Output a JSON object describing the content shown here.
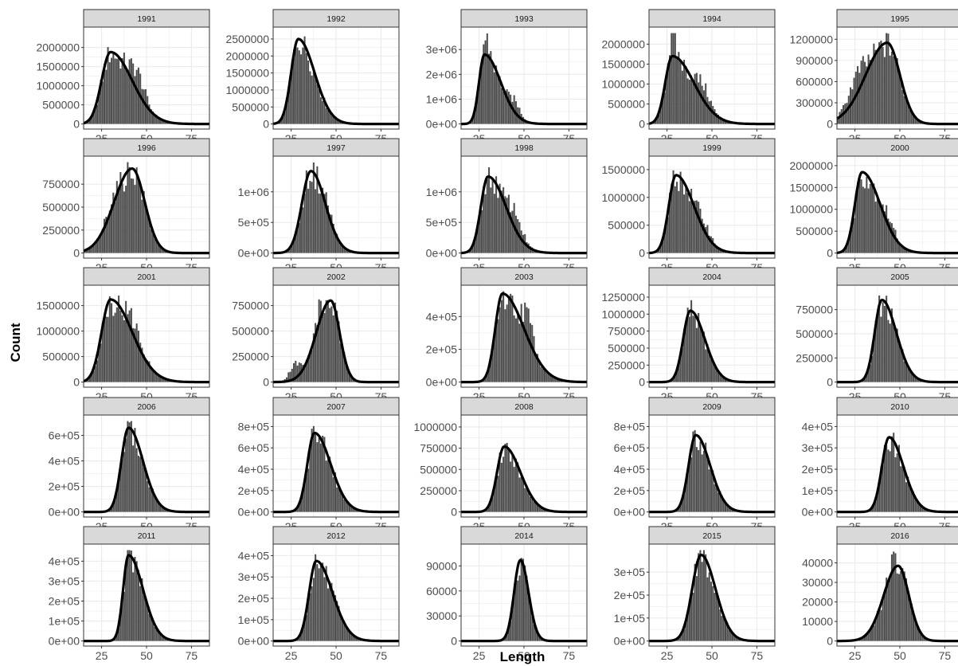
{
  "figure": {
    "xlabel": "Length",
    "ylabel": "Count"
  },
  "colors": {
    "bar": "#4d4d4d",
    "curve": "#000000",
    "strip": "#d9d9d9",
    "strip_border": "#333333",
    "grid": "#ebebeb",
    "panel_border": "#333333"
  },
  "chart_data": {
    "type": "faceted-histogram",
    "xlim": [
      15,
      85
    ],
    "x_ticks": [
      25,
      50,
      75
    ],
    "panels": [
      {
        "year": "1991",
        "ymax": 2400000,
        "yticks": [
          0,
          500000,
          1000000,
          1500000,
          2000000
        ],
        "ytick_labels": [
          "0",
          "500000",
          "1000000",
          "1500000",
          "2000000"
        ],
        "fit": {
          "mu": 30,
          "sl": 5,
          "sr": 12,
          "peak": 1880000
        },
        "bumps": [
          {
            "x": 45,
            "s": 4,
            "h": 550000
          }
        ]
      },
      {
        "year": "1992",
        "ymax": 2700000,
        "yticks": [
          0,
          500000,
          1000000,
          1500000,
          2000000,
          2500000
        ],
        "ytick_labels": [
          "0",
          "500000",
          "1000000",
          "1500000",
          "2000000",
          "2500000"
        ],
        "fit": {
          "mu": 29,
          "sl": 4,
          "sr": 9,
          "peak": 2500000
        },
        "bumps": []
      },
      {
        "year": "1993",
        "ymax": 3700000,
        "yticks": [
          0,
          1000000,
          2000000,
          3000000
        ],
        "ytick_labels": [
          "0e+00",
          "1e+06",
          "2e+06",
          "3e+06"
        ],
        "fit": {
          "mu": 28,
          "sl": 3,
          "sr": 9,
          "peak": 2800000
        },
        "bumps": [
          {
            "x": 29,
            "s": 2,
            "h": 700000
          },
          {
            "x": 45,
            "s": 3,
            "h": 500000
          }
        ]
      },
      {
        "year": "1994",
        "ymax": 2300000,
        "yticks": [
          0,
          500000,
          1000000,
          1500000,
          2000000
        ],
        "ytick_labels": [
          "0",
          "500000",
          "1000000",
          "1500000",
          "2000000"
        ],
        "fit": {
          "mu": 28,
          "sl": 4,
          "sr": 12,
          "peak": 1700000
        },
        "bumps": [
          {
            "x": 28,
            "s": 2,
            "h": 500000
          },
          {
            "x": 45,
            "s": 4,
            "h": 400000
          }
        ]
      },
      {
        "year": "1995",
        "ymax": 1300000,
        "yticks": [
          0,
          300000,
          600000,
          900000,
          1200000
        ],
        "ytick_labels": [
          "0",
          "300000",
          "600000",
          "900000",
          "1200000"
        ],
        "fit": {
          "mu": 43,
          "sl": 12,
          "sr": 7,
          "peak": 1150000
        },
        "bumps": [
          {
            "x": 26,
            "s": 5,
            "h": 300000
          }
        ]
      },
      {
        "year": "1996",
        "ymax": 1000000,
        "yticks": [
          0,
          250000,
          500000,
          750000
        ],
        "ytick_labels": [
          "0",
          "250000",
          "500000",
          "750000"
        ],
        "fit": {
          "mu": 42,
          "sl": 10,
          "sr": 7,
          "peak": 920000
        },
        "bumps": [
          {
            "x": 30,
            "s": 3,
            "h": 120000
          }
        ]
      },
      {
        "year": "1997",
        "ymax": 1500000,
        "yticks": [
          0,
          500000,
          1000000
        ],
        "ytick_labels": [
          "0e+00",
          "5e+05",
          "1e+06"
        ],
        "fit": {
          "mu": 36,
          "sl": 5,
          "sr": 8,
          "peak": 1340000
        },
        "bumps": [
          {
            "x": 45,
            "s": 3,
            "h": 150000
          }
        ]
      },
      {
        "year": "1998",
        "ymax": 1500000,
        "yticks": [
          0,
          500000,
          1000000
        ],
        "ytick_labels": [
          "0e+00",
          "5e+05",
          "1e+06"
        ],
        "fit": {
          "mu": 30,
          "sl": 4,
          "sr": 10,
          "peak": 1250000
        },
        "bumps": [
          {
            "x": 45,
            "s": 4,
            "h": 300000
          }
        ]
      },
      {
        "year": "1999",
        "ymax": 1650000,
        "yticks": [
          0,
          500000,
          1000000,
          1500000
        ],
        "ytick_labels": [
          "0",
          "500000",
          "1000000",
          "1500000"
        ],
        "fit": {
          "mu": 30,
          "sl": 4,
          "sr": 10,
          "peak": 1400000
        },
        "bumps": [
          {
            "x": 45,
            "s": 4,
            "h": 200000
          }
        ]
      },
      {
        "year": "2000",
        "ymax": 2100000,
        "yticks": [
          0,
          500000,
          1000000,
          1500000,
          2000000
        ],
        "ytick_labels": [
          "0",
          "500000",
          "1000000",
          "1500000",
          "2000000"
        ],
        "fit": {
          "mu": 29,
          "sl": 4,
          "sr": 10,
          "peak": 1850000
        },
        "bumps": [
          {
            "x": 43,
            "s": 4,
            "h": 250000
          }
        ]
      },
      {
        "year": "2001",
        "ymax": 1800000,
        "yticks": [
          0,
          500000,
          1000000,
          1500000
        ],
        "ytick_labels": [
          "0",
          "500000",
          "1000000",
          "1500000"
        ],
        "fit": {
          "mu": 30,
          "sl": 5,
          "sr": 12,
          "peak": 1620000
        },
        "bumps": [
          {
            "x": 43,
            "s": 4,
            "h": 300000
          }
        ]
      },
      {
        "year": "2002",
        "ymax": 900000,
        "yticks": [
          0,
          250000,
          500000,
          750000
        ],
        "ytick_labels": [
          "0",
          "250000",
          "500000",
          "750000"
        ],
        "fit": {
          "mu": 47,
          "sl": 8,
          "sr": 5,
          "peak": 800000
        },
        "bumps": [
          {
            "x": 27,
            "s": 3,
            "h": 150000
          },
          {
            "x": 40,
            "s": 2,
            "h": 150000
          }
        ]
      },
      {
        "year": "2003",
        "ymax": 560000,
        "yticks": [
          0,
          200000,
          400000
        ],
        "ytick_labels": [
          "0e+00",
          "2e+05",
          "4e+05"
        ],
        "fit": {
          "mu": 38,
          "sl": 4,
          "sr": 12,
          "peak": 540000
        },
        "bumps": [
          {
            "x": 52,
            "s": 3,
            "h": 150000
          }
        ]
      },
      {
        "year": "2004",
        "ymax": 1350000,
        "yticks": [
          0,
          250000,
          500000,
          750000,
          1000000,
          1250000
        ],
        "ytick_labels": [
          "0",
          "250000",
          "500000",
          "750000",
          "1000000",
          "1250000"
        ],
        "fit": {
          "mu": 38,
          "sl": 4,
          "sr": 8,
          "peak": 1050000
        },
        "bumps": []
      },
      {
        "year": "2005",
        "ymax": 950000,
        "yticks": [
          0,
          250000,
          500000,
          750000
        ],
        "ytick_labels": [
          "0",
          "250000",
          "500000",
          "750000"
        ],
        "fit": {
          "mu": 40,
          "sl": 4,
          "sr": 8,
          "peak": 850000
        },
        "bumps": []
      },
      {
        "year": "2006",
        "ymax": 720000,
        "yticks": [
          0,
          200000,
          400000,
          600000
        ],
        "ytick_labels": [
          "0e+00",
          "2e+05",
          "4e+05",
          "6e+05"
        ],
        "fit": {
          "mu": 40,
          "sl": 4,
          "sr": 8,
          "peak": 660000
        },
        "bumps": []
      },
      {
        "year": "2007",
        "ymax": 860000,
        "yticks": [
          0,
          200000,
          400000,
          600000,
          800000
        ],
        "ytick_labels": [
          "0e+00",
          "2e+05",
          "4e+05",
          "6e+05",
          "8e+05"
        ],
        "fit": {
          "mu": 38,
          "sl": 4,
          "sr": 9,
          "peak": 740000
        },
        "bumps": []
      },
      {
        "year": "2008",
        "ymax": 1080000,
        "yticks": [
          0,
          250000,
          500000,
          750000,
          1000000
        ],
        "ytick_labels": [
          "0",
          "250000",
          "500000",
          "750000",
          "1000000"
        ],
        "fit": {
          "mu": 39,
          "sl": 4,
          "sr": 9,
          "peak": 770000
        },
        "bumps": []
      },
      {
        "year": "2009",
        "ymax": 860000,
        "yticks": [
          0,
          200000,
          400000,
          600000,
          800000
        ],
        "ytick_labels": [
          "0e+00",
          "2e+05",
          "4e+05",
          "6e+05",
          "8e+05"
        ],
        "fit": {
          "mu": 41,
          "sl": 4,
          "sr": 8,
          "peak": 720000
        },
        "bumps": []
      },
      {
        "year": "2010",
        "ymax": 430000,
        "yticks": [
          0,
          100000,
          200000,
          300000,
          400000
        ],
        "ytick_labels": [
          "0e+00",
          "1e+05",
          "2e+05",
          "3e+05",
          "4e+05"
        ],
        "fit": {
          "mu": 44,
          "sl": 4,
          "sr": 8,
          "peak": 350000
        },
        "bumps": []
      },
      {
        "year": "2011",
        "ymax": 460000,
        "yticks": [
          0,
          100000,
          200000,
          300000,
          400000
        ],
        "ytick_labels": [
          "0e+00",
          "1e+05",
          "2e+05",
          "3e+05",
          "4e+05"
        ],
        "fit": {
          "mu": 40,
          "sl": 3,
          "sr": 8,
          "peak": 430000
        },
        "bumps": []
      },
      {
        "year": "2012",
        "ymax": 430000,
        "yticks": [
          0,
          100000,
          200000,
          300000,
          400000
        ],
        "ytick_labels": [
          "0e+00",
          "1e+05",
          "2e+05",
          "3e+05",
          "4e+05"
        ],
        "fit": {
          "mu": 39,
          "sl": 4,
          "sr": 9,
          "peak": 375000
        },
        "bumps": []
      },
      {
        "year": "2014",
        "ymax": 110000,
        "yticks": [
          0,
          30000,
          60000,
          90000
        ],
        "ytick_labels": [
          "0",
          "30000",
          "60000",
          "90000"
        ],
        "fit": {
          "mu": 48,
          "sl": 3.5,
          "sr": 4.5,
          "peak": 97000
        },
        "bumps": []
      },
      {
        "year": "2015",
        "ymax": 400000,
        "yticks": [
          0,
          100000,
          200000,
          300000
        ],
        "ytick_labels": [
          "0e+00",
          "1e+05",
          "2e+05",
          "3e+05"
        ],
        "fit": {
          "mu": 44,
          "sl": 5,
          "sr": 8,
          "peak": 375000
        },
        "bumps": []
      },
      {
        "year": "2016",
        "ymax": 47000,
        "yticks": [
          0,
          10000,
          20000,
          30000,
          40000
        ],
        "ytick_labels": [
          "0",
          "10000",
          "20000",
          "30000",
          "40000"
        ],
        "fit": {
          "mu": 49,
          "sl": 8,
          "sr": 6,
          "peak": 38500
        },
        "bumps": [
          {
            "x": 45,
            "s": 2,
            "h": 6000
          }
        ]
      }
    ]
  }
}
